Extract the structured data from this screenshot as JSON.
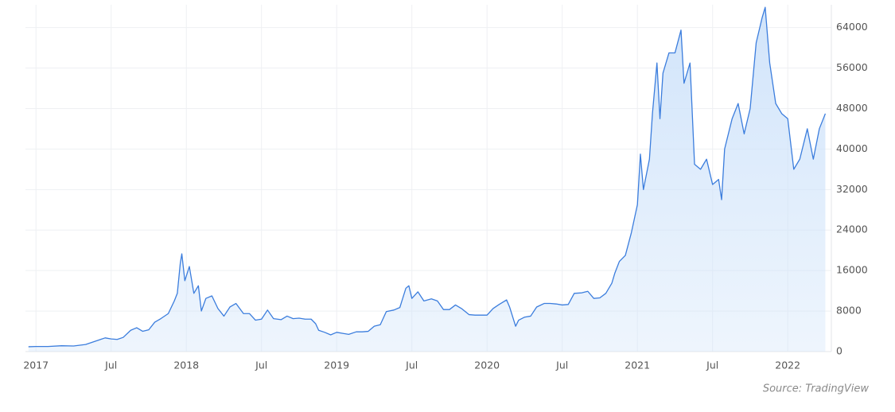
{
  "chart_data": {
    "type": "area",
    "source": "Source: TradingView",
    "color": "#3b7ddd",
    "fill": "#cfe3fa",
    "grid": true,
    "xlim": [
      2016.93,
      2022.29
    ],
    "ylim": [
      0,
      68500
    ],
    "xticks": [
      {
        "value": 2017,
        "label": "2017"
      },
      {
        "value": 2017.5,
        "label": "Jul"
      },
      {
        "value": 2018,
        "label": "2018"
      },
      {
        "value": 2018.5,
        "label": "Jul"
      },
      {
        "value": 2019,
        "label": "2019"
      },
      {
        "value": 2019.5,
        "label": "Jul"
      },
      {
        "value": 2020,
        "label": "2020"
      },
      {
        "value": 2020.5,
        "label": "Jul"
      },
      {
        "value": 2021,
        "label": "2021"
      },
      {
        "value": 2021.5,
        "label": "Jul"
      },
      {
        "value": 2022,
        "label": "2022"
      }
    ],
    "yticks": [
      0,
      8000,
      16000,
      24000,
      32000,
      40000,
      48000,
      56000,
      64000
    ],
    "x": [
      2016.95,
      2017.0,
      2017.08,
      2017.17,
      2017.25,
      2017.33,
      2017.42,
      2017.46,
      2017.5,
      2017.54,
      2017.58,
      2017.63,
      2017.67,
      2017.71,
      2017.75,
      2017.79,
      2017.83,
      2017.88,
      2017.92,
      2017.94,
      2017.96,
      2017.97,
      2017.99,
      2018.02,
      2018.05,
      2018.08,
      2018.1,
      2018.13,
      2018.17,
      2018.21,
      2018.25,
      2018.29,
      2018.33,
      2018.38,
      2018.42,
      2018.46,
      2018.5,
      2018.54,
      2018.58,
      2018.63,
      2018.67,
      2018.71,
      2018.75,
      2018.79,
      2018.83,
      2018.86,
      2018.88,
      2018.92,
      2018.96,
      2019.0,
      2019.04,
      2019.08,
      2019.13,
      2019.17,
      2019.21,
      2019.25,
      2019.29,
      2019.33,
      2019.38,
      2019.42,
      2019.46,
      2019.48,
      2019.5,
      2019.54,
      2019.58,
      2019.63,
      2019.67,
      2019.71,
      2019.75,
      2019.79,
      2019.83,
      2019.88,
      2019.92,
      2019.96,
      2020.0,
      2020.04,
      2020.08,
      2020.13,
      2020.15,
      2020.19,
      2020.21,
      2020.25,
      2020.29,
      2020.33,
      2020.38,
      2020.42,
      2020.46,
      2020.5,
      2020.54,
      2020.58,
      2020.63,
      2020.67,
      2020.71,
      2020.75,
      2020.79,
      2020.83,
      2020.85,
      2020.88,
      2020.92,
      2020.96,
      2021.0,
      2021.02,
      2021.04,
      2021.08,
      2021.1,
      2021.13,
      2021.15,
      2021.17,
      2021.21,
      2021.25,
      2021.29,
      2021.31,
      2021.35,
      2021.38,
      2021.42,
      2021.46,
      2021.5,
      2021.54,
      2021.56,
      2021.58,
      2021.63,
      2021.67,
      2021.71,
      2021.75,
      2021.79,
      2021.83,
      2021.85,
      2021.88,
      2021.92,
      2021.96,
      2022.0,
      2022.04,
      2022.08,
      2022.13,
      2022.17,
      2022.21,
      2022.25
    ],
    "values": [
      950,
      1000,
      1000,
      1150,
      1100,
      1400,
      2300,
      2700,
      2500,
      2400,
      2800,
      4200,
      4700,
      4000,
      4300,
      5800,
      6500,
      7500,
      10000,
      11500,
      17500,
      19300,
      14000,
      16800,
      11500,
      13000,
      8000,
      10500,
      11000,
      8500,
      7000,
      8800,
      9500,
      7500,
      7500,
      6200,
      6400,
      8200,
      6500,
      6300,
      7000,
      6500,
      6600,
      6400,
      6400,
      5500,
      4200,
      3800,
      3300,
      3800,
      3600,
      3400,
      3900,
      3900,
      4000,
      5000,
      5300,
      7900,
      8200,
      8700,
      12500,
      13000,
      10500,
      11800,
      10000,
      10400,
      10000,
      8300,
      8300,
      9200,
      8500,
      7300,
      7200,
      7200,
      7200,
      8500,
      9300,
      10200,
      8800,
      5000,
      6200,
      6800,
      7000,
      8800,
      9500,
      9500,
      9400,
      9200,
      9300,
      11500,
      11600,
      11900,
      10500,
      10600,
      11500,
      13500,
      15500,
      17800,
      19000,
      23500,
      29000,
      39000,
      32000,
      38000,
      47000,
      57000,
      46000,
      55000,
      59000,
      59000,
      63500,
      53000,
      57000,
      37000,
      36000,
      38000,
      33000,
      34000,
      30000,
      40000,
      46000,
      49000,
      43000,
      48000,
      61000,
      66000,
      68000,
      57000,
      49000,
      47000,
      46000,
      36000,
      38000,
      44000,
      38000,
      44000,
      47000
    ]
  }
}
